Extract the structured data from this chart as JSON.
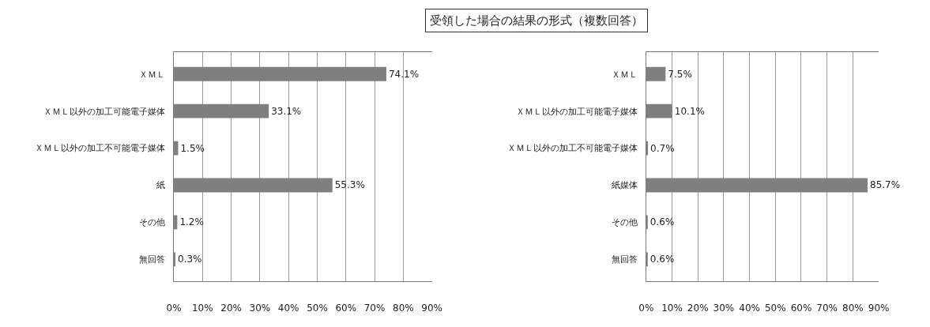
{
  "chart_data": [
    {
      "type": "bar",
      "title": "受領した場合の結果の形式（複数回答）",
      "orientation": "horizontal",
      "categories": [
        "ＸＭＬ",
        "ＸＭＬ以外の加工可能電子媒体",
        "ＸＭＬ以外の加工不可能電子媒体",
        "紙",
        "その他",
        "無回答"
      ],
      "values": [
        74.1,
        33.1,
        1.5,
        55.3,
        1.2,
        0.3
      ],
      "value_labels": [
        "74.1%",
        "33.1%",
        "1.5%",
        "55.3%",
        "1.2%",
        "0.3%"
      ],
      "color": "#7f7f7f",
      "xlim": [
        0,
        90
      ],
      "xticks": [
        {
          "value": 0,
          "label": "0%"
        },
        {
          "value": 10,
          "label": "10%"
        },
        {
          "value": 20,
          "label": "20%"
        },
        {
          "value": 30,
          "label": "30%"
        },
        {
          "value": 40,
          "label": "40%"
        },
        {
          "value": 50,
          "label": "50%"
        },
        {
          "value": 60,
          "label": "60%"
        },
        {
          "value": 70,
          "label": "70%"
        },
        {
          "value": 80,
          "label": "80%"
        },
        {
          "value": 90,
          "label": "90%"
        }
      ],
      "grid": "x"
    },
    {
      "type": "bar",
      "orientation": "horizontal",
      "categories": [
        "ＸＭＬ",
        "ＸＭＬ以外の加工可能電子媒体",
        "ＸＭＬ以外の加工不可能電子媒体",
        "紙媒体",
        "その他",
        "無回答"
      ],
      "values": [
        7.5,
        10.1,
        0.7,
        85.7,
        0.6,
        0.6
      ],
      "value_labels": [
        "7.5%",
        "10.1%",
        "0.7%",
        "85.7%",
        "0.6%",
        "0.6%"
      ],
      "color": "#7f7f7f",
      "xlim": [
        0,
        90
      ],
      "xticks": [
        {
          "value": 0,
          "label": "0%"
        },
        {
          "value": 10,
          "label": "10%"
        },
        {
          "value": 20,
          "label": "20%"
        },
        {
          "value": 30,
          "label": "30%"
        },
        {
          "value": 40,
          "label": "40%"
        },
        {
          "value": 50,
          "label": "50%"
        },
        {
          "value": 60,
          "label": "60%"
        },
        {
          "value": 70,
          "label": "70%"
        },
        {
          "value": 80,
          "label": "80%"
        },
        {
          "value": 90,
          "label": "90%"
        }
      ],
      "grid": "x"
    }
  ]
}
